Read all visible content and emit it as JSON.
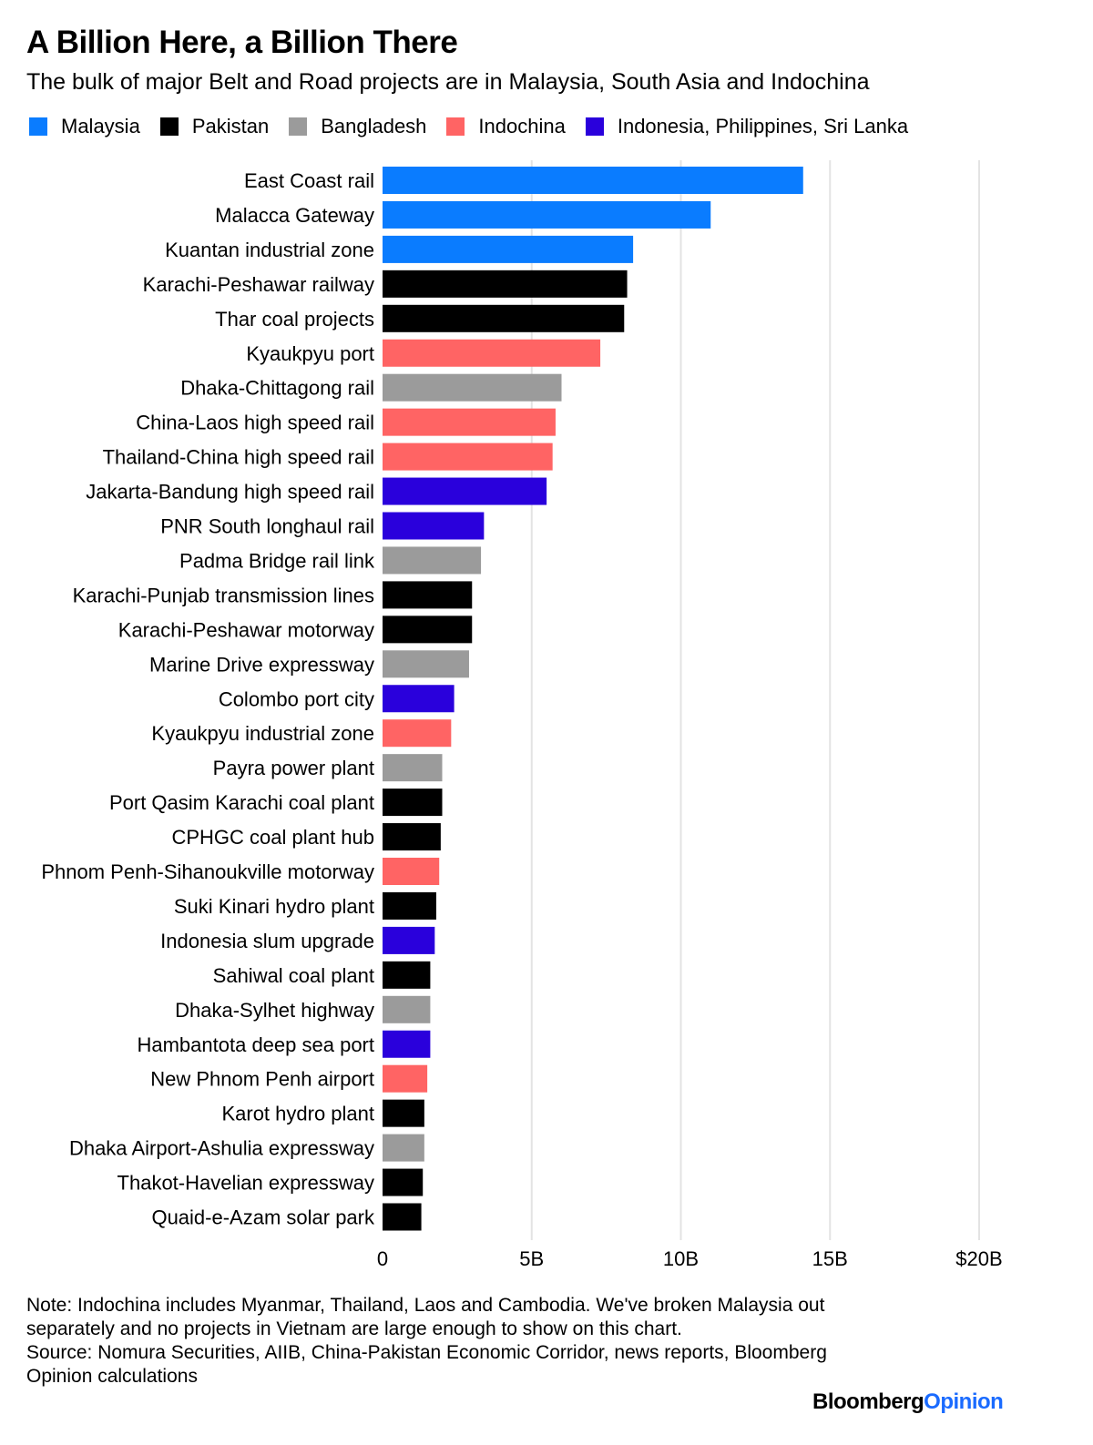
{
  "title": "A Billion Here, a Billion There",
  "subtitle": "The bulk of major Belt and Road projects are in Malaysia, South Asia and Indochina",
  "legend": [
    {
      "label": "Malaysia",
      "color": "#0a7cff"
    },
    {
      "label": "Pakistan",
      "color": "#000000"
    },
    {
      "label": "Bangladesh",
      "color": "#9b9b9b"
    },
    {
      "label": "Indochina",
      "color": "#ff6464"
    },
    {
      "label": "Indonesia, Philippines, Sri Lanka",
      "color": "#2a00dc"
    }
  ],
  "chart_data": {
    "type": "bar",
    "orientation": "horizontal",
    "categories": [
      "East Coast rail",
      "Malacca Gateway",
      "Kuantan industrial zone",
      "Karachi-Peshawar railway",
      "Thar coal projects",
      "Kyaukpyu port",
      "Dhaka-Chittagong rail",
      "China-Laos high speed rail",
      "Thailand-China high speed rail",
      "Jakarta-Bandung high speed rail",
      "PNR South longhaul rail",
      "Padma Bridge rail link",
      "Karachi-Punjab transmission lines",
      "Karachi-Peshawar motorway",
      "Marine Drive expressway",
      "Colombo port city",
      "Kyaukpyu industrial zone",
      "Payra power plant",
      "Port Qasim Karachi coal plant",
      "CPHGC coal plant hub",
      "Phnom Penh-Sihanoukville motorway",
      "Suki Kinari hydro plant",
      "Indonesia slum upgrade",
      "Sahiwal coal plant",
      "Dhaka-Sylhet highway",
      "Hambantota deep sea port",
      "New Phnom Penh airport",
      "Karot hydro plant",
      "Dhaka Airport-Ashulia expressway",
      "Thakot-Havelian expressway",
      "Quaid-e-Azam solar park"
    ],
    "values": [
      14.1,
      11.0,
      8.4,
      8.2,
      8.1,
      7.3,
      6.0,
      5.8,
      5.7,
      5.5,
      3.4,
      3.3,
      3.0,
      3.0,
      2.9,
      2.4,
      2.3,
      2.0,
      2.0,
      1.95,
      1.9,
      1.8,
      1.75,
      1.6,
      1.6,
      1.6,
      1.5,
      1.4,
      1.4,
      1.35,
      1.3
    ],
    "groups": [
      "Malaysia",
      "Malaysia",
      "Malaysia",
      "Pakistan",
      "Pakistan",
      "Indochina",
      "Bangladesh",
      "Indochina",
      "Indochina",
      "Indonesia, Philippines, Sri Lanka",
      "Indonesia, Philippines, Sri Lanka",
      "Bangladesh",
      "Pakistan",
      "Pakistan",
      "Bangladesh",
      "Indonesia, Philippines, Sri Lanka",
      "Indochina",
      "Bangladesh",
      "Pakistan",
      "Pakistan",
      "Indochina",
      "Pakistan",
      "Indonesia, Philippines, Sri Lanka",
      "Pakistan",
      "Bangladesh",
      "Indonesia, Philippines, Sri Lanka",
      "Indochina",
      "Pakistan",
      "Bangladesh",
      "Pakistan",
      "Pakistan"
    ],
    "xlim": [
      0,
      20
    ],
    "xticks": [
      0,
      5,
      10,
      15,
      20
    ],
    "xtick_labels": [
      "0",
      "5B",
      "10B",
      "15B",
      "$20B"
    ],
    "grid": true
  },
  "notes": {
    "note": "Note: Indochina includes Myanmar, Thailand, Laos and Cambodia. We've broken Malaysia out separately and no projects in Vietnam are large enough to show on this chart.",
    "source": "Source: Nomura Securities, AIIB, China-Pakistan Economic Corridor, news reports, Bloomberg Opinion calculations"
  },
  "logo": {
    "part1": "Bloomberg",
    "part2": "Opinion"
  }
}
